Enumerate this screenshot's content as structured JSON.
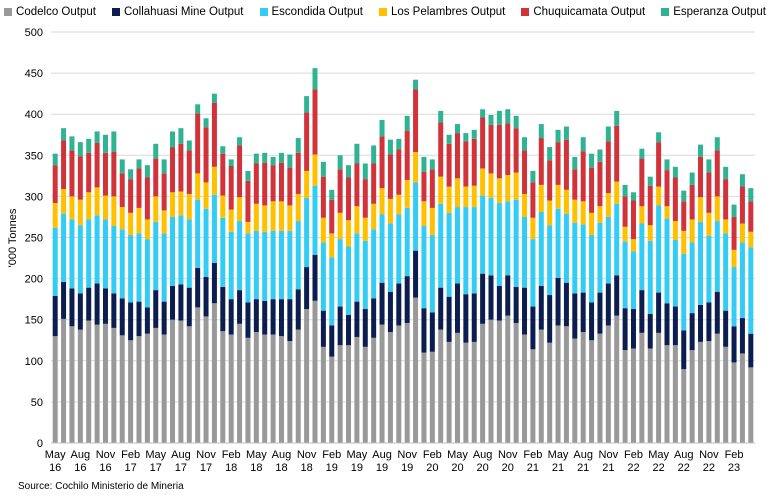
{
  "chart_data": {
    "type": "bar",
    "stacked": true,
    "title": "",
    "xlabel": "",
    "ylabel": "'000 Tonnes",
    "ylim": [
      0,
      500
    ],
    "yticks": [
      0,
      50,
      100,
      150,
      200,
      250,
      300,
      350,
      400,
      450,
      500
    ],
    "grid": true,
    "legend_position": "top",
    "x_tick_labels": [
      [
        "May",
        "16"
      ],
      [
        "Aug",
        "16"
      ],
      [
        "Nov",
        "16"
      ],
      [
        "Feb",
        "17"
      ],
      [
        "May",
        "17"
      ],
      [
        "Aug",
        "17"
      ],
      [
        "Nov",
        "17"
      ],
      [
        "Feb",
        "18"
      ],
      [
        "May",
        "18"
      ],
      [
        "Aug",
        "18"
      ],
      [
        "Nov",
        "18"
      ],
      [
        "Feb",
        "19"
      ],
      [
        "May",
        "19"
      ],
      [
        "Aug",
        "19"
      ],
      [
        "Nov",
        "19"
      ],
      [
        "Feb",
        "20"
      ],
      [
        "May",
        "20"
      ],
      [
        "Aug",
        "20"
      ],
      [
        "Nov",
        "20"
      ],
      [
        "Feb",
        "21"
      ],
      [
        "May",
        "21"
      ],
      [
        "Aug",
        "21"
      ],
      [
        "Nov",
        "21"
      ],
      [
        "Feb",
        "22"
      ],
      [
        "May",
        "22"
      ],
      [
        "Aug",
        "22"
      ],
      [
        "Nov",
        "22"
      ],
      [
        "Feb",
        "23"
      ]
    ],
    "period": "May 2016 - Apr 2023 (monthly)",
    "series": [
      {
        "name": "Codelco Output",
        "color": "#999999",
        "values": [
          130,
          151,
          142,
          138,
          149,
          144,
          145,
          140,
          131,
          125,
          130,
          133,
          140,
          132,
          150,
          149,
          142,
          165,
          154,
          170,
          136,
          132,
          145,
          128,
          135,
          132,
          132,
          130,
          124,
          138,
          163,
          173,
          117,
          105,
          119,
          119,
          129,
          117,
          128,
          144,
          135,
          143,
          146,
          177,
          110,
          111,
          138,
          123,
          134,
          122,
          123,
          145,
          150,
          149,
          155,
          146,
          132,
          114,
          138,
          122,
          143,
          142,
          127,
          135,
          125,
          133,
          143,
          155,
          113,
          115,
          134,
          115,
          134,
          119,
          119,
          90,
          113,
          123,
          124,
          133,
          117,
          98,
          109,
          92
        ]
      },
      {
        "name": "Collahuasi Mine Output",
        "color": "#0c1e4f",
        "values": [
          49,
          45,
          46,
          44,
          40,
          50,
          43,
          42,
          45,
          46,
          42,
          32,
          46,
          40,
          41,
          44,
          47,
          48,
          48,
          49,
          54,
          43,
          41,
          43,
          40,
          41,
          43,
          45,
          51,
          49,
          51,
          56,
          44,
          38,
          47,
          37,
          43,
          46,
          48,
          51,
          49,
          51,
          57,
          57,
          54,
          48,
          51,
          55,
          60,
          59,
          59,
          61,
          54,
          42,
          49,
          44,
          57,
          52,
          53,
          58,
          58,
          53,
          55,
          48,
          46,
          50,
          51,
          49,
          51,
          48,
          52,
          42,
          49,
          51,
          47,
          47,
          45,
          45,
          47,
          51,
          44,
          44,
          43,
          41
        ]
      },
      {
        "name": "Escondida Output",
        "color": "#33ccf5",
        "values": [
          83,
          83,
          84,
          83,
          83,
          83,
          84,
          82,
          84,
          82,
          83,
          83,
          83,
          83,
          84,
          84,
          83,
          83,
          83,
          83,
          84,
          82,
          84,
          84,
          83,
          84,
          83,
          83,
          83,
          83,
          84,
          84,
          83,
          83,
          82,
          83,
          83,
          83,
          84,
          83,
          83,
          84,
          83,
          83,
          100,
          94,
          102,
          102,
          93,
          106,
          105,
          95,
          94,
          101,
          90,
          106,
          86,
          82,
          90,
          85,
          84,
          84,
          86,
          83,
          82,
          85,
          81,
          87,
          81,
          70,
          81,
          89,
          106,
          103,
          81,
          93,
          86,
          101,
          81,
          86,
          94,
          72,
          92,
          105
        ]
      },
      {
        "name": "Los Pelambres Output",
        "color": "#ffc000",
        "values": [
          30,
          30,
          28,
          31,
          33,
          34,
          29,
          36,
          27,
          27,
          31,
          24,
          31,
          28,
          30,
          29,
          31,
          32,
          32,
          34,
          27,
          27,
          29,
          14,
          33,
          32,
          36,
          36,
          31,
          33,
          33,
          38,
          30,
          29,
          32,
          32,
          33,
          28,
          31,
          32,
          30,
          24,
          34,
          37,
          30,
          33,
          33,
          32,
          35,
          25,
          26,
          33,
          30,
          30,
          32,
          33,
          28,
          26,
          33,
          30,
          29,
          29,
          28,
          28,
          27,
          20,
          29,
          27,
          18,
          15,
          21,
          19,
          23,
          15,
          23,
          28,
          28,
          30,
          28,
          30,
          17,
          21,
          23,
          19
        ]
      },
      {
        "name": "Chuquicamata Output",
        "color": "#d0343a",
        "values": [
          46,
          59,
          56,
          53,
          48,
          54,
          52,
          54,
          41,
          41,
          48,
          51,
          46,
          45,
          55,
          58,
          53,
          73,
          67,
          78,
          51,
          53,
          63,
          50,
          49,
          52,
          44,
          47,
          46,
          50,
          71,
          79,
          50,
          41,
          53,
          52,
          52,
          47,
          49,
          63,
          54,
          55,
          60,
          76,
          36,
          47,
          66,
          52,
          55,
          55,
          57,
          62,
          59,
          65,
          63,
          54,
          53,
          43,
          57,
          49,
          52,
          61,
          37,
          61,
          55,
          54,
          63,
          68,
          37,
          47,
          58,
          48,
          54,
          44,
          53,
          36,
          42,
          49,
          49,
          56,
          49,
          40,
          45,
          37
        ]
      },
      {
        "name": "Esperanza Output",
        "color": "#2fb393",
        "values": [
          14,
          15,
          17,
          17,
          17,
          14,
          22,
          25,
          17,
          12,
          11,
          15,
          18,
          17,
          19,
          19,
          12,
          11,
          11,
          11,
          9,
          8,
          10,
          12,
          12,
          12,
          10,
          12,
          16,
          18,
          20,
          26,
          18,
          12,
          17,
          15,
          24,
          19,
          22,
          20,
          18,
          13,
          18,
          12,
          18,
          12,
          14,
          11,
          11,
          10,
          11,
          10,
          12,
          17,
          17,
          15,
          16,
          14,
          17,
          16,
          15,
          16,
          15,
          17,
          17,
          15,
          18,
          18,
          14,
          10,
          12,
          11,
          12,
          13,
          13,
          13,
          15,
          15,
          16,
          16,
          15,
          15,
          15,
          16
        ]
      }
    ],
    "source": "Source: Cochilo Ministerio de Mineria"
  }
}
